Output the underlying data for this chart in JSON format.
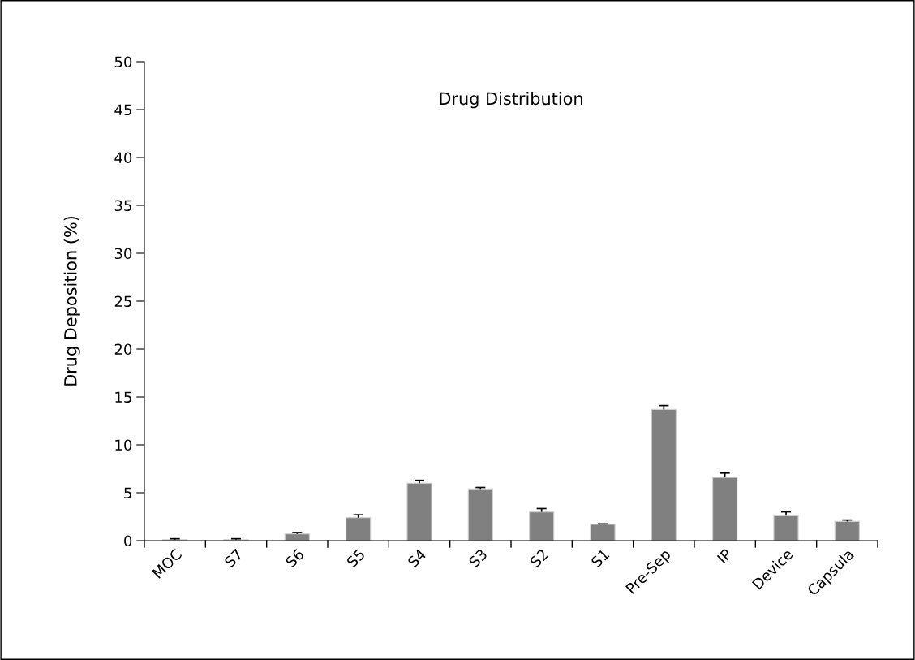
{
  "chart_data": {
    "type": "bar",
    "title": "Drug Distribution",
    "ylabel": "Drug Deposition (%)",
    "categories": [
      "MOC",
      "S7",
      "S6",
      "S5",
      "S4",
      "S3",
      "S2",
      "S1",
      "Pre-Sep",
      "IP",
      "Device",
      "Capsula"
    ],
    "values": [
      0.1,
      0.1,
      0.7,
      2.4,
      6.0,
      5.4,
      3.0,
      1.7,
      13.7,
      6.6,
      2.6,
      2.0
    ],
    "errors": [
      [
        0.1,
        0.2
      ],
      [
        0.1,
        0.2
      ],
      [
        0.7,
        0.85
      ],
      [
        2.4,
        2.7
      ],
      [
        6.0,
        6.3
      ],
      [
        5.4,
        5.55
      ],
      [
        3.0,
        3.35
      ],
      [
        1.7,
        1.75
      ],
      [
        13.7,
        14.1
      ],
      [
        6.6,
        7.05
      ],
      [
        2.6,
        3.0
      ],
      [
        2.0,
        2.15
      ]
    ],
    "color": "#808080",
    "ylim": [
      0,
      50
    ],
    "yticks": [
      0,
      5,
      10,
      15,
      20,
      25,
      30,
      35,
      40,
      45,
      50
    ],
    "grid": false,
    "legend": false
  }
}
